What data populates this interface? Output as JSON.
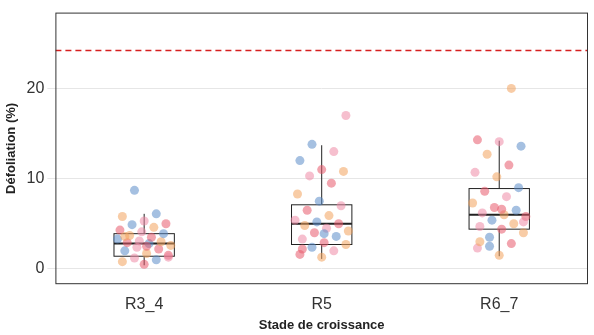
{
  "chart_data": {
    "type": "boxplot",
    "x_label": "Stade de croissance",
    "y_label": "Défoliation (%)",
    "categories": [
      "R3_4",
      "R5",
      "R6_7"
    ],
    "boxes": [
      {
        "whisker_low": 0.4,
        "q1": 1.4,
        "median": 2.8,
        "q3": 3.9,
        "whisker_high": 6.1
      },
      {
        "whisker_low": 1.1,
        "q1": 2.7,
        "median": 5.0,
        "q3": 7.1,
        "whisker_high": 13.7
      },
      {
        "whisker_low": 1.4,
        "q1": 4.4,
        "median": 6.0,
        "q3": 8.9,
        "whisker_high": 14.2
      }
    ],
    "values": [
      [
        0.5,
        0.8,
        1.0,
        1.2,
        1.5,
        1.7,
        2.0,
        2.2,
        2.4,
        2.6,
        2.8,
        2.9,
        3.0,
        3.1,
        3.3,
        3.5,
        3.7,
        3.9,
        4.1,
        4.3,
        4.6,
        4.9,
        5.0,
        5.3,
        5.8,
        6.1,
        8.7,
        1.3,
        2.5,
        3.6
      ],
      [
        1.3,
        1.6,
        2.0,
        2.4,
        2.7,
        2.9,
        3.3,
        3.6,
        4.0,
        4.2,
        4.5,
        4.8,
        5.0,
        5.2,
        5.4,
        5.9,
        6.5,
        7.0,
        7.5,
        8.3,
        9.5,
        10.3,
        10.8,
        11.0,
        12.0,
        13.0,
        13.8,
        17.0,
        3.9,
        2.2
      ],
      [
        1.5,
        2.3,
        2.8,
        3.5,
        4.0,
        4.4,
        4.7,
        5.0,
        5.4,
        5.8,
        6.0,
        6.2,
        6.5,
        6.8,
        7.3,
        8.0,
        8.6,
        9.0,
        10.2,
        10.7,
        11.5,
        12.7,
        13.6,
        14.1,
        14.3,
        20.0,
        2.5,
        5.2,
        6.6,
        3.0
      ]
    ],
    "colors": [
      [
        "#e85a6b",
        "#f2a25c",
        "#5b8cc9",
        "#ef8aa6",
        "#e85a6b",
        "#f2a25c",
        "#5b8cc9",
        "#e85a6b",
        "#ef8aa6",
        "#f2a25c",
        "#5b8cc9",
        "#e85a6b",
        "#f2a25c",
        "#ef8aa6",
        "#5b8cc9",
        "#e85a6b",
        "#f2a25c",
        "#5b8cc9",
        "#ef8aa6",
        "#e85a6b",
        "#f2a25c",
        "#5b8cc9",
        "#e85a6b",
        "#ef8aa6",
        "#f2a25c",
        "#5b8cc9",
        "#5b8cc9",
        "#ef8aa6",
        "#e85a6b",
        "#f2a25c"
      ],
      [
        "#f2a25c",
        "#e85a6b",
        "#ef8aa6",
        "#5b8cc9",
        "#f2a25c",
        "#e85a6b",
        "#ef8aa6",
        "#5b8cc9",
        "#e85a6b",
        "#f2a25c",
        "#ef8aa6",
        "#f2a25c",
        "#e85a6b",
        "#5b8cc9",
        "#ef8aa6",
        "#f2a25c",
        "#e85a6b",
        "#ef8aa6",
        "#5b8cc9",
        "#f2a25c",
        "#e85a6b",
        "#ef8aa6",
        "#f2a25c",
        "#e85a6b",
        "#5b8cc9",
        "#ef8aa6",
        "#5b8cc9",
        "#ef8aa6",
        "#5b8cc9",
        "#e85a6b"
      ],
      [
        "#f2a25c",
        "#ef8aa6",
        "#e85a6b",
        "#5b8cc9",
        "#f2a25c",
        "#e85a6b",
        "#ef8aa6",
        "#f2a25c",
        "#5b8cc9",
        "#e85a6b",
        "#f2a25c",
        "#ef8aa6",
        "#5b8cc9",
        "#e85a6b",
        "#f2a25c",
        "#ef8aa6",
        "#e85a6b",
        "#5b8cc9",
        "#f2a25c",
        "#ef8aa6",
        "#e85a6b",
        "#f2a25c",
        "#5b8cc9",
        "#ef8aa6",
        "#e85a6b",
        "#f2a25c",
        "#5b8cc9",
        "#ef8aa6",
        "#e85a6b",
        "#f2a25c"
      ]
    ],
    "threshold": {
      "value": 24.2,
      "color": "#d62020",
      "line_style": "dashed"
    },
    "ylim": [
      -1.7,
      28.4
    ],
    "yticks": [
      0,
      10,
      20
    ],
    "grid": true
  }
}
